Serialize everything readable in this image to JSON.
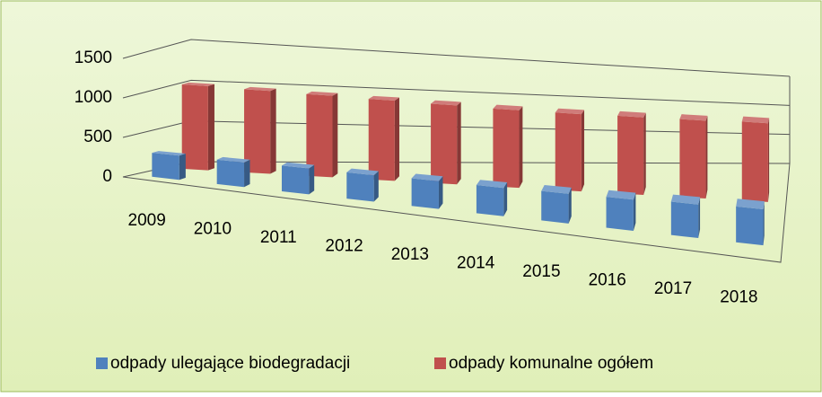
{
  "chart_data": {
    "type": "bar3d",
    "categories": [
      "2009",
      "2010",
      "2011",
      "2012",
      "2013",
      "2014",
      "2015",
      "2016",
      "2017",
      "2018"
    ],
    "series": [
      {
        "name": "odpady ulegające biodegradacji",
        "color": "#4f81bd",
        "values": [
          300,
          300,
          310,
          310,
          320,
          320,
          330,
          340,
          360,
          380
        ]
      },
      {
        "name": "odpady komunalne ogółem",
        "color": "#c0504d",
        "values": [
          1050,
          1040,
          1030,
          1020,
          1010,
          1000,
          1000,
          1010,
          1020,
          1040
        ]
      }
    ],
    "ylim": [
      0,
      1500
    ],
    "yticks": [
      0,
      500,
      1000,
      1500
    ],
    "grid": true,
    "legend": "bottom"
  }
}
